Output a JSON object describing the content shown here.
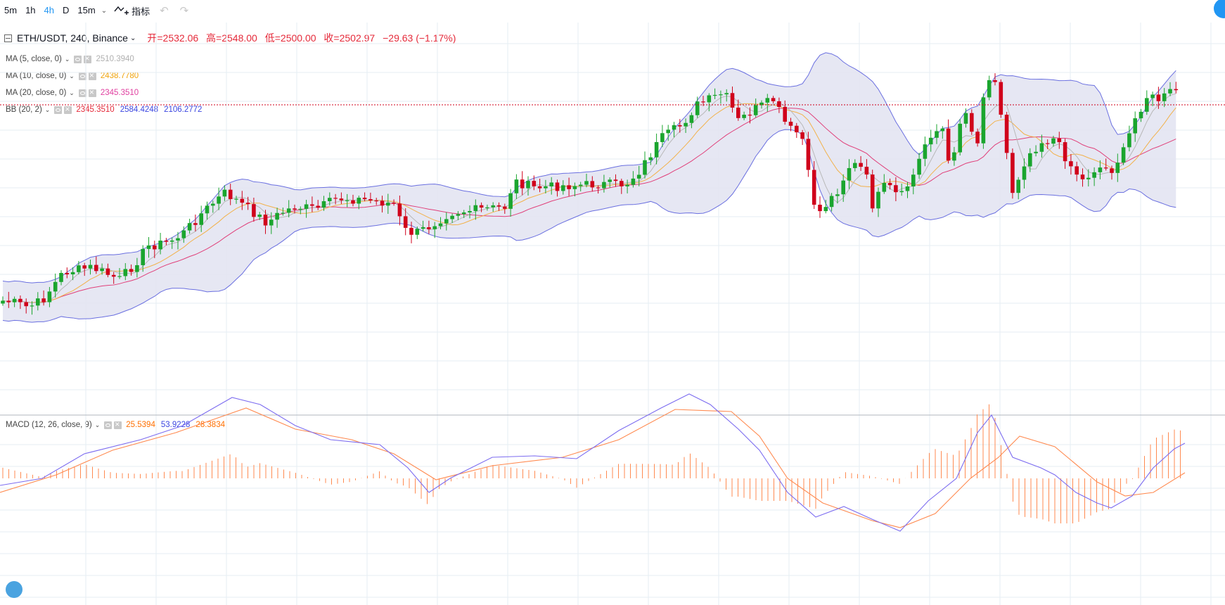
{
  "toolbar": {
    "intervals": [
      "5m",
      "1h",
      "4h",
      "D",
      "15m"
    ],
    "active_interval": "4h",
    "indicators_label": "指标"
  },
  "header": {
    "symbol": "ETH/USDT, 240, Binance",
    "open": "开=2532.06",
    "high": "高=2548.00",
    "low": "低=2500.00",
    "close": "收=2502.97",
    "change": "−29.63 (−1.17%)"
  },
  "indicators": [
    {
      "name": "MA (5, close, 0)",
      "values": [
        "2510.3940"
      ],
      "colors": [
        "#b0b0b0"
      ]
    },
    {
      "name": "MA (10, close, 0)",
      "values": [
        "2438.7780"
      ],
      "colors": [
        "#f0a30a"
      ]
    },
    {
      "name": "MA (20, close, 0)",
      "values": [
        "2345.3510"
      ],
      "colors": [
        "#e040a0"
      ]
    },
    {
      "name": "BB (20, 2)",
      "values": [
        "2345.3510",
        "2584.4248",
        "2106.2772"
      ],
      "colors": [
        "#e52a3a",
        "#3b46e0",
        "#3b46e0"
      ]
    }
  ],
  "macd": {
    "name": "MACD (12, 26, close, 9)",
    "values": [
      "25.5394",
      "53.9228",
      "28.3834"
    ],
    "colors": [
      "#ff6f00",
      "#3b46e0",
      "#ff6f00"
    ]
  },
  "colors": {
    "up": "#1aa52e",
    "down": "#d0021b",
    "bb_fill": "#e3e4f2",
    "bb_line": "#6a6fe0",
    "ma5": "#b8b8b8",
    "ma10": "#f2b24c",
    "ma20": "#e0407a",
    "macd_line": "#7c6cf0",
    "signal_line": "#ff8a50",
    "hist": "#ff8a50",
    "grid": "#e6edf3",
    "accent": "#2196f3"
  }
}
